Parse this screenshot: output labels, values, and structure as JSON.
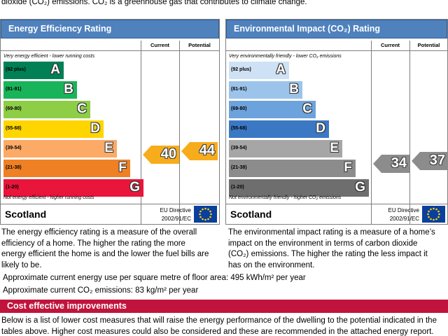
{
  "intro_text": "dioxide (CO₂) emissions. CO₂ is a greenhouse gas that contributes to climate change.",
  "efficiency": {
    "title": "Energy Efficiency Rating",
    "col_current": "Current",
    "col_potential": "Potential",
    "top_caption": "Very energy efficient - lower running costs",
    "bottom_caption": "Not energy efficient - higher running costs",
    "bands": [
      {
        "code": "(92 plus)",
        "letter": "A",
        "color": "#008054"
      },
      {
        "code": "(81-91)",
        "letter": "B",
        "color": "#19b459"
      },
      {
        "code": "(69-80)",
        "letter": "C",
        "color": "#8dce46"
      },
      {
        "code": "(55-68)",
        "letter": "D",
        "color": "#ffd500"
      },
      {
        "code": "(39-54)",
        "letter": "E",
        "color": "#fcaa65"
      },
      {
        "code": "(21-38)",
        "letter": "F",
        "color": "#ef8023"
      },
      {
        "code": "(1-20)",
        "letter": "G",
        "color": "#e9153b"
      }
    ],
    "current": "40",
    "potential": "44",
    "arrow_color": "#f7ac1c",
    "region": "Scotland",
    "eu_line1": "EU Directive",
    "eu_line2": "2002/91/EC"
  },
  "environmental": {
    "title": "Environmental Impact (CO₂) Rating",
    "col_current": "Current",
    "col_potential": "Potential",
    "top_caption": "Very environmentally friendly - lower CO₂ emissions",
    "bottom_caption": "Not environmentally friendly - higher CO₂ emissions",
    "bands": [
      {
        "code": "(92 plus)",
        "letter": "A",
        "color": "#cfe2f5"
      },
      {
        "code": "(81-91)",
        "letter": "B",
        "color": "#9cc4ea"
      },
      {
        "code": "(69-80)",
        "letter": "C",
        "color": "#6da3dd"
      },
      {
        "code": "(55-68)",
        "letter": "D",
        "color": "#3b78c4"
      },
      {
        "code": "(39-54)",
        "letter": "E",
        "color": "#a6a6a6"
      },
      {
        "code": "(21-38)",
        "letter": "F",
        "color": "#8c8c8c"
      },
      {
        "code": "(1-20)",
        "letter": "G",
        "color": "#6e6e6e"
      }
    ],
    "current": "34",
    "potential": "37",
    "arrow_color": "#8c8c8c",
    "region": "Scotland",
    "eu_line1": "EU Directive",
    "eu_line2": "2002/91/EC"
  },
  "desc_left": "The energy efficiency rating is a measure of the overall efficiency of a home. The higher the rating the more energy efficient the home is and the lower the fuel bills are likely to be.",
  "desc_right": "The environmental impact rating is a measure of a home’s impact on the environment in terms of carbon dioxide (CO₂) emissions. The higher the rating the less impact it has on the environment.",
  "approx_energy": "Approximate current energy use per square metre of floor area: 495 kWh/m² per year",
  "approx_co2": "Approximate current CO₂ emissions: 83 kg/m² per year",
  "cost_title": "Cost effective improvements",
  "cost_text": "Below is a list of lower cost measures that will raise the energy performance of the dwelling to the potential indicated in the tables above. Higher cost measures could also be considered and these are recommended in the attached energy report."
}
